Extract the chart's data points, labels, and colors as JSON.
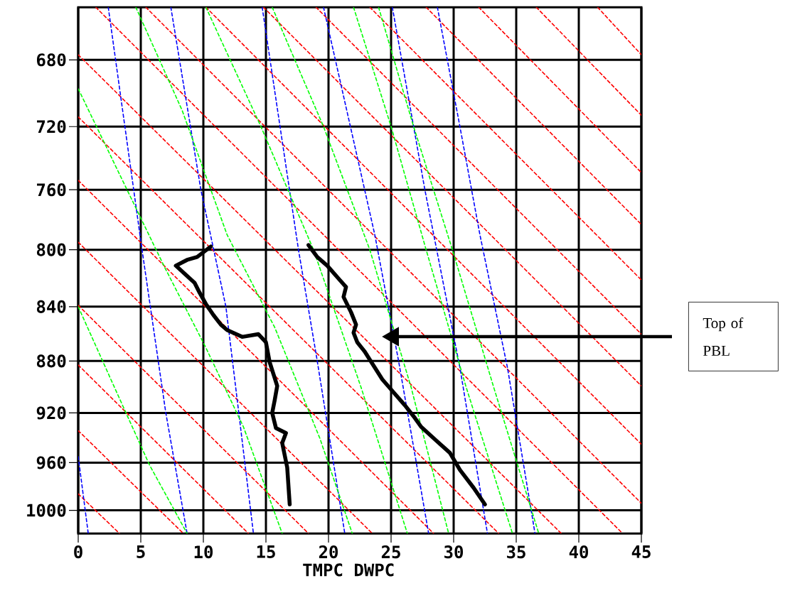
{
  "chart_data": {
    "type": "line",
    "xlabel": "TMPC DWPC",
    "xlim": [
      0,
      45
    ],
    "xticks": [
      0,
      5,
      10,
      15,
      20,
      25,
      30,
      35,
      40,
      45
    ],
    "ylim": [
      1020,
      650
    ],
    "yticks": [
      680,
      720,
      760,
      800,
      840,
      880,
      920,
      960,
      1000
    ],
    "log": "y",
    "grid": true,
    "annotations": [
      "Top of PBL"
    ],
    "series": [
      {
        "color": "#ff0000",
        "line_style": "dashed",
        "x": [
          41.5,
          45
        ],
        "values": [
          650,
          677
        ]
      },
      {
        "color": "#ff0000",
        "line_style": "dashed",
        "x": [
          36.6,
          45
        ],
        "values": [
          650,
          713
        ]
      },
      {
        "color": "#ff0000",
        "line_style": "dashed",
        "x": [
          32.0,
          45
        ],
        "values": [
          650,
          749
        ]
      },
      {
        "color": "#ff0000",
        "line_style": "dashed",
        "x": [
          27.8,
          45
        ],
        "values": [
          650,
          783
        ]
      },
      {
        "color": "#ff0000",
        "line_style": "dashed",
        "x": [
          23.3,
          45
        ],
        "values": [
          650,
          821
        ]
      },
      {
        "color": "#ff0000",
        "line_style": "dashed",
        "x": [
          19.0,
          45
        ],
        "values": [
          650,
          860
        ]
      },
      {
        "color": "#ff0000",
        "line_style": "dashed",
        "x": [
          14.8,
          45
        ],
        "values": [
          650,
          899
        ]
      },
      {
        "color": "#ff0000",
        "line_style": "dashed",
        "x": [
          10.2,
          45
        ],
        "values": [
          650,
          945
        ]
      },
      {
        "color": "#ff0000",
        "line_style": "dashed",
        "x": [
          5.4,
          45
        ],
        "values": [
          650,
          994
        ]
      },
      {
        "color": "#ff0000",
        "line_style": "dashed",
        "x": [
          1.4,
          43.5
        ],
        "values": [
          650,
          1020
        ]
      },
      {
        "color": "#ff0000",
        "line_style": "dashed",
        "x": [
          0,
          38.6
        ],
        "values": [
          677,
          1020
        ]
      },
      {
        "color": "#ff0000",
        "line_style": "dashed",
        "x": [
          0,
          33.6
        ],
        "values": [
          714,
          1020
        ]
      },
      {
        "color": "#ff0000",
        "line_style": "dashed",
        "x": [
          0,
          28.4
        ],
        "values": [
          754,
          1020
        ]
      },
      {
        "color": "#ff0000",
        "line_style": "dashed",
        "x": [
          0,
          23.5
        ],
        "values": [
          795,
          1020
        ]
      },
      {
        "color": "#ff0000",
        "line_style": "dashed",
        "x": [
          0,
          18.4
        ],
        "values": [
          839,
          1020
        ]
      },
      {
        "color": "#ff0000",
        "line_style": "dashed",
        "x": [
          0,
          13.6
        ],
        "values": [
          883,
          1020
        ]
      },
      {
        "color": "#ff0000",
        "line_style": "dashed",
        "x": [
          0,
          8.4
        ],
        "values": [
          934,
          1020
        ]
      },
      {
        "color": "#ff0000",
        "line_style": "dashed",
        "x": [
          0,
          3.3
        ],
        "values": [
          986,
          1020
        ]
      },
      {
        "color": "#0000ff",
        "line_style": "dashed",
        "x": [
          2.4,
          5.1,
          7.0,
          8.7
        ],
        "values": [
          650,
          800,
          920,
          1020
        ]
      },
      {
        "color": "#0000ff",
        "line_style": "dashed",
        "x": [
          7.4,
          9.8,
          11.8,
          14.0
        ],
        "values": [
          650,
          760,
          840,
          1020
        ]
      },
      {
        "color": "#0000ff",
        "line_style": "dashed",
        "x": [
          14.7,
          17.6,
          19.1,
          21.3
        ],
        "values": [
          650,
          800,
          880,
          1020
        ]
      },
      {
        "color": "#0000ff",
        "line_style": "dashed",
        "x": [
          19.6,
          23.7,
          25.6,
          28.0
        ],
        "values": [
          650,
          790,
          880,
          1020
        ]
      },
      {
        "color": "#0000ff",
        "line_style": "dashed",
        "x": [
          25.1,
          27.7,
          30.5,
          32.7
        ],
        "values": [
          650,
          760,
          885,
          1020
        ]
      },
      {
        "color": "#0000ff",
        "line_style": "dashed",
        "x": [
          28.7,
          30.5,
          32.1,
          34.3,
          36.5
        ],
        "values": [
          650,
          720,
          790,
          885,
          1020
        ]
      },
      {
        "color": "#0000ff",
        "line_style": "dashed",
        "x": [
          0,
          0.8
        ],
        "values": [
          955,
          1020
        ]
      },
      {
        "color": "#00ff00",
        "line_style": "dashed",
        "x": [
          0,
          3.6,
          6.9,
          10.2,
          13.2,
          16.3
        ],
        "values": [
          697,
          755,
          812,
          870,
          931,
          1020
        ]
      },
      {
        "color": "#00ff00",
        "line_style": "dashed",
        "x": [
          4.6,
          8.3,
          11.9,
          15.7,
          19.3,
          21.9
        ],
        "values": [
          650,
          710,
          790,
          855,
          940,
          1020
        ]
      },
      {
        "color": "#00ff00",
        "line_style": "dashed",
        "x": [
          0,
          2.8,
          5.7,
          8.7
        ],
        "values": [
          840,
          898,
          962,
          1020
        ]
      },
      {
        "color": "#00ff00",
        "line_style": "dashed",
        "x": [
          10.2,
          14.6,
          18.8,
          22.6,
          26.3
        ],
        "values": [
          650,
          720,
          800,
          900,
          1020
        ]
      },
      {
        "color": "#00ff00",
        "line_style": "dashed",
        "x": [
          15.5,
          19.6,
          23.3,
          26.6,
          29.6
        ],
        "values": [
          650,
          720,
          800,
          900,
          1020
        ]
      },
      {
        "color": "#00ff00",
        "line_style": "dashed",
        "x": [
          22.0,
          25.0,
          27.8,
          31.0,
          34.7
        ],
        "values": [
          650,
          720,
          800,
          900,
          1020
        ]
      },
      {
        "color": "#00ff00",
        "line_style": "dashed",
        "x": [
          24.0,
          26.8,
          29.9,
          33.2,
          36.8
        ],
        "values": [
          650,
          720,
          800,
          900,
          1020
        ]
      },
      {
        "color": "#000000",
        "line_style": "solid",
        "x": [
          16.9,
          16.7,
          16.3,
          16.6,
          15.8,
          15.5,
          15.7,
          15.9,
          15.3,
          15.0,
          14.4,
          13.1,
          11.9,
          11.4,
          10.8,
          10.2,
          9.7,
          9.3,
          7.8,
          8.7,
          9.5,
          10.6
        ],
        "values": [
          995,
          964,
          944,
          936,
          932,
          920,
          910,
          899,
          881,
          866,
          860,
          862,
          857,
          853,
          846,
          838,
          830,
          823,
          811,
          807,
          805,
          798
        ]
      },
      {
        "color": "#000000",
        "line_style": "solid",
        "x": [
          32.5,
          31.6,
          30.5,
          29.7,
          28.6,
          27.4,
          26.9,
          26.1,
          25.2,
          24.3,
          23.5,
          22.9,
          22.3,
          22.0,
          22.2,
          21.8,
          21.2,
          21.4,
          20.9,
          19.9,
          19.1,
          18.4
        ],
        "values": [
          995,
          981,
          966,
          952,
          942,
          931,
          924,
          914,
          904,
          894,
          882,
          873,
          866,
          859,
          853,
          844,
          833,
          826,
          821,
          811,
          805,
          797
        ]
      }
    ]
  }
}
